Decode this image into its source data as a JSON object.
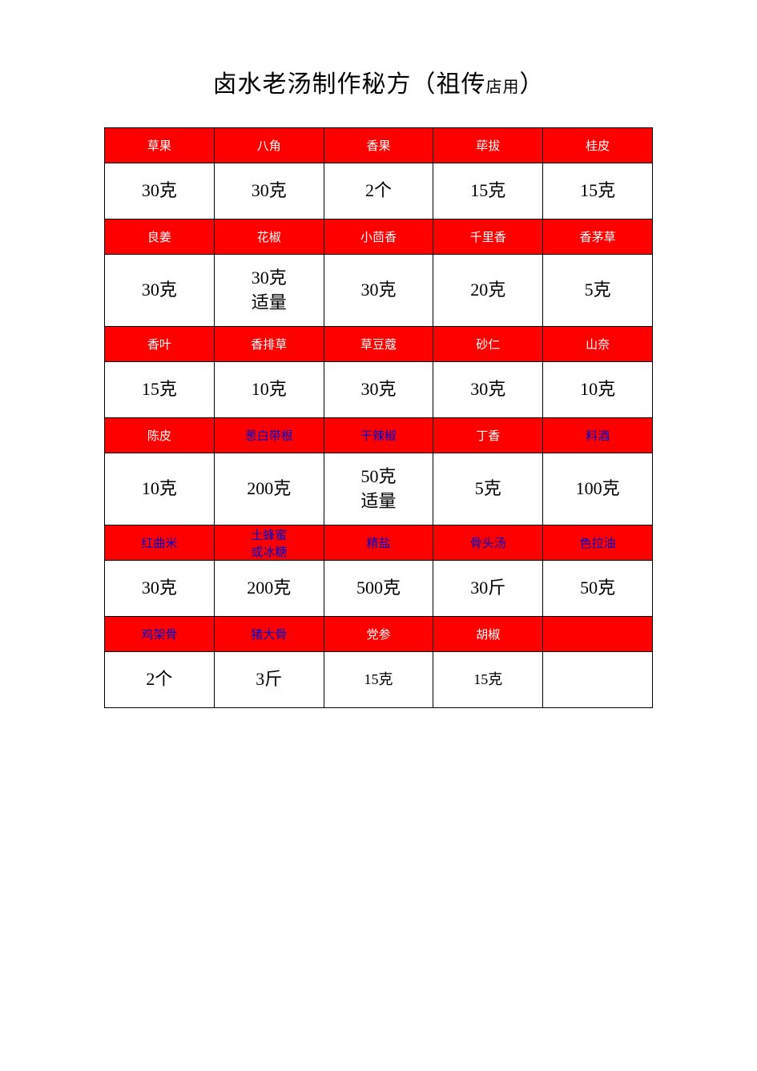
{
  "title_main": "卤水老汤制作秘方（祖传",
  "title_suffix": "店用",
  "title_end": "）",
  "colors": {
    "header_bg": "#ff0000",
    "header_text_white": "#ffffff",
    "header_text_blue": "#0000cc",
    "value_bg": "#ffffff",
    "value_text": "#000000",
    "border": "#000000",
    "page_bg": "#ffffff"
  },
  "font_sizes": {
    "title": 30,
    "title_small": 20,
    "header": 15,
    "value": 22,
    "value_small": 18
  },
  "rows": [
    {
      "headers": [
        {
          "text": "草果",
          "style": "white"
        },
        {
          "text": "八角",
          "style": "white"
        },
        {
          "text": "香果",
          "style": "white"
        },
        {
          "text": "荜拔",
          "style": "white"
        },
        {
          "text": "桂皮",
          "style": "white"
        }
      ],
      "values": [
        "30克",
        "30克",
        "2个",
        "15克",
        "15克"
      ]
    },
    {
      "headers": [
        {
          "text": "良姜",
          "style": "white"
        },
        {
          "text": "花椒",
          "style": "white"
        },
        {
          "text": "小茴香",
          "style": "white"
        },
        {
          "text": "千里香",
          "style": "white"
        },
        {
          "text": "香茅草",
          "style": "white"
        }
      ],
      "values": [
        "30克",
        "30克\n适量",
        "30克",
        "20克",
        "5克"
      ],
      "tall": true
    },
    {
      "headers": [
        {
          "text": "香叶",
          "style": "white"
        },
        {
          "text": "香排草",
          "style": "white"
        },
        {
          "text": "草豆蔻",
          "style": "white"
        },
        {
          "text": "砂仁",
          "style": "white"
        },
        {
          "text": "山奈",
          "style": "white"
        }
      ],
      "values": [
        "15克",
        "10克",
        "30克",
        "30克",
        "10克"
      ]
    },
    {
      "headers": [
        {
          "text": "陈皮",
          "style": "white"
        },
        {
          "text": "葱白带根",
          "style": "blue"
        },
        {
          "text": "干辣椒",
          "style": "blue"
        },
        {
          "text": "丁香",
          "style": "white"
        },
        {
          "text": "料酒",
          "style": "blue"
        }
      ],
      "values": [
        "10克",
        "200克",
        "50克\n适量",
        "5克",
        "100克"
      ],
      "tall": true
    },
    {
      "headers": [
        {
          "text": "红曲米",
          "style": "blue"
        },
        {
          "text": "土蜂蜜\n或冰糖",
          "style": "blue"
        },
        {
          "text": "精盐",
          "style": "blue"
        },
        {
          "text": "骨头汤",
          "style": "blue"
        },
        {
          "text": "色拉油",
          "style": "blue"
        }
      ],
      "values": [
        "30克",
        "200克",
        "500克",
        "30斤",
        "50克"
      ]
    },
    {
      "headers": [
        {
          "text": "鸡架骨",
          "style": "blue"
        },
        {
          "text": "猪大骨",
          "style": "blue"
        },
        {
          "text": "党参",
          "style": "white"
        },
        {
          "text": "胡椒",
          "style": "white"
        },
        {
          "text": "",
          "style": "white"
        }
      ],
      "values": [
        "2个",
        "3斤",
        "15克",
        "15克",
        ""
      ],
      "small_last": true
    }
  ]
}
